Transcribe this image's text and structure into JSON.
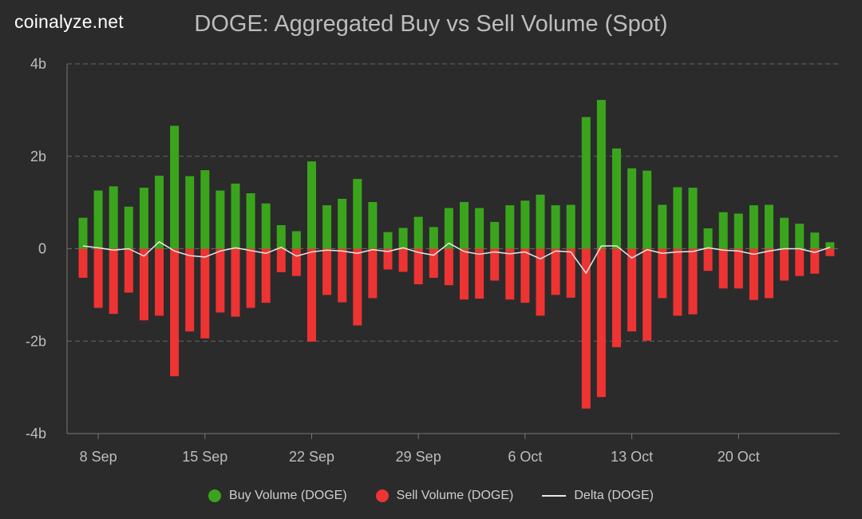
{
  "brand": "coinalyze.net",
  "chart_data": {
    "type": "bar",
    "title": "DOGE: Aggregated Buy vs Sell Volume (Spot)",
    "ylim": [
      -4,
      4
    ],
    "y_ticks": [
      {
        "value": 4,
        "label": "4b"
      },
      {
        "value": 2,
        "label": "2b"
      },
      {
        "value": 0,
        "label": "0"
      },
      {
        "value": -2,
        "label": "-2b"
      },
      {
        "value": -4,
        "label": "-4b"
      }
    ],
    "x_ticks": [
      {
        "index": 1,
        "label": "8 Sep"
      },
      {
        "index": 8,
        "label": "15 Sep"
      },
      {
        "index": 15,
        "label": "22 Sep"
      },
      {
        "index": 22,
        "label": "29 Sep"
      },
      {
        "index": 29,
        "label": "6 Oct"
      },
      {
        "index": 36,
        "label": "13 Oct"
      },
      {
        "index": 43,
        "label": "20 Oct"
      }
    ],
    "unit": "b",
    "series": [
      {
        "name": "Buy Volume (DOGE)",
        "kind": "bar",
        "color": "#3aa51c",
        "values": [
          0.67,
          1.26,
          1.35,
          0.91,
          1.32,
          1.58,
          2.66,
          1.57,
          1.7,
          1.26,
          1.41,
          1.2,
          0.98,
          0.51,
          0.38,
          1.89,
          0.94,
          1.08,
          1.51,
          1.01,
          0.36,
          0.45,
          0.69,
          0.47,
          0.88,
          1.01,
          0.88,
          0.58,
          0.94,
          1.04,
          1.17,
          0.94,
          0.95,
          2.85,
          3.22,
          2.17,
          1.74,
          1.69,
          0.95,
          1.33,
          1.32,
          0.44,
          0.79,
          0.76,
          0.94,
          0.95,
          0.67,
          0.54,
          0.35,
          0.14
        ]
      },
      {
        "name": "Sell Volume (DOGE)",
        "kind": "bar",
        "color": "#ee3333",
        "values": [
          -0.63,
          -1.28,
          -1.41,
          -0.95,
          -1.55,
          -1.45,
          -2.76,
          -1.79,
          -1.94,
          -1.38,
          -1.47,
          -1.28,
          -1.17,
          -0.51,
          -0.59,
          -2.01,
          -1.0,
          -1.16,
          -1.66,
          -1.07,
          -0.45,
          -0.5,
          -0.77,
          -0.63,
          -0.79,
          -1.1,
          -1.08,
          -0.69,
          -1.1,
          -1.17,
          -1.45,
          -1.0,
          -1.06,
          -3.46,
          -3.21,
          -2.13,
          -1.79,
          -1.99,
          -1.07,
          -1.45,
          -1.42,
          -0.48,
          -0.86,
          -0.86,
          -1.11,
          -1.07,
          -0.69,
          -0.59,
          -0.54,
          -0.16
        ]
      },
      {
        "name": "Delta (DOGE)",
        "kind": "line",
        "color": "#e8e8e8",
        "values": [
          0.06,
          0.02,
          -0.03,
          0.0,
          -0.16,
          0.15,
          -0.05,
          -0.15,
          -0.18,
          -0.05,
          0.02,
          -0.04,
          -0.1,
          0.03,
          -0.16,
          -0.07,
          -0.03,
          -0.05,
          -0.1,
          -0.02,
          -0.06,
          0.02,
          -0.08,
          -0.14,
          0.12,
          -0.06,
          -0.12,
          -0.07,
          -0.11,
          -0.07,
          -0.22,
          -0.05,
          -0.07,
          -0.53,
          0.06,
          0.06,
          -0.2,
          -0.02,
          -0.1,
          -0.07,
          -0.06,
          0.02,
          -0.03,
          -0.05,
          -0.12,
          -0.05,
          0.0,
          0.0,
          -0.08,
          0.03
        ]
      }
    ]
  },
  "legend": {
    "buy": {
      "label": "Buy Volume (DOGE)",
      "color": "#3aa51c"
    },
    "sell": {
      "label": "Sell Volume (DOGE)",
      "color": "#ee3333"
    },
    "delta": {
      "label": "Delta (DOGE)",
      "color": "#e8e8e8"
    }
  }
}
